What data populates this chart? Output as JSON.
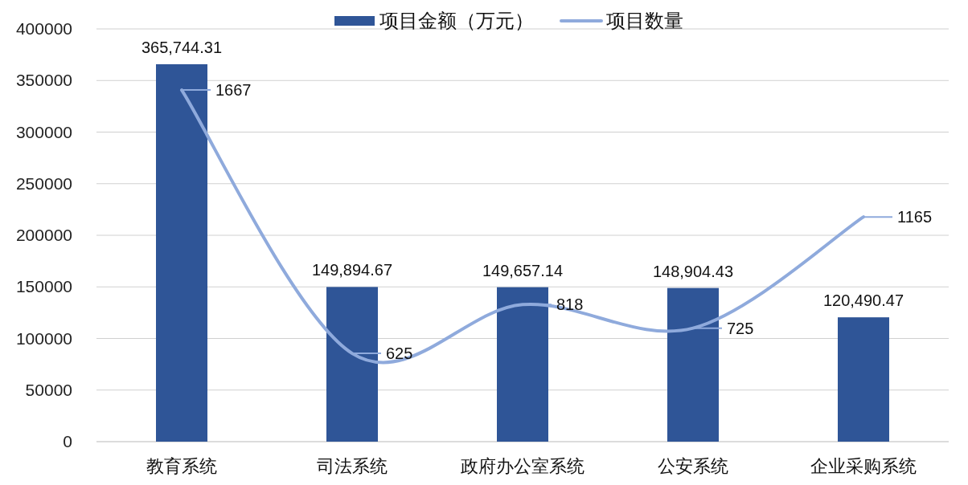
{
  "chart_data": {
    "type": "bar",
    "categories": [
      "教育系统",
      "司法系统",
      "政府办公室系统",
      "公安系统",
      "企业采购系统"
    ],
    "series": [
      {
        "name": "项目金额（万元）",
        "color": "#2f5597",
        "values": [
          365744.31,
          149894.67,
          149657.14,
          148904.43,
          120490.47
        ],
        "value_labels": [
          "365,744.31",
          "149,894.67",
          "149,657.14",
          "148,904.43",
          "120,490.47"
        ]
      },
      {
        "name": "项目数量",
        "type": "line",
        "axis": "y2",
        "color": "#8faadc",
        "values": [
          1667,
          625,
          818,
          725,
          1165
        ],
        "value_labels": [
          "1667",
          "625",
          "818",
          "725",
          "1165"
        ]
      }
    ],
    "ylim": [
      0,
      400000
    ],
    "yticks": [
      0,
      50000,
      100000,
      150000,
      200000,
      250000,
      300000,
      350000,
      400000
    ],
    "grid": "y",
    "legend": "top",
    "marker": "none"
  }
}
